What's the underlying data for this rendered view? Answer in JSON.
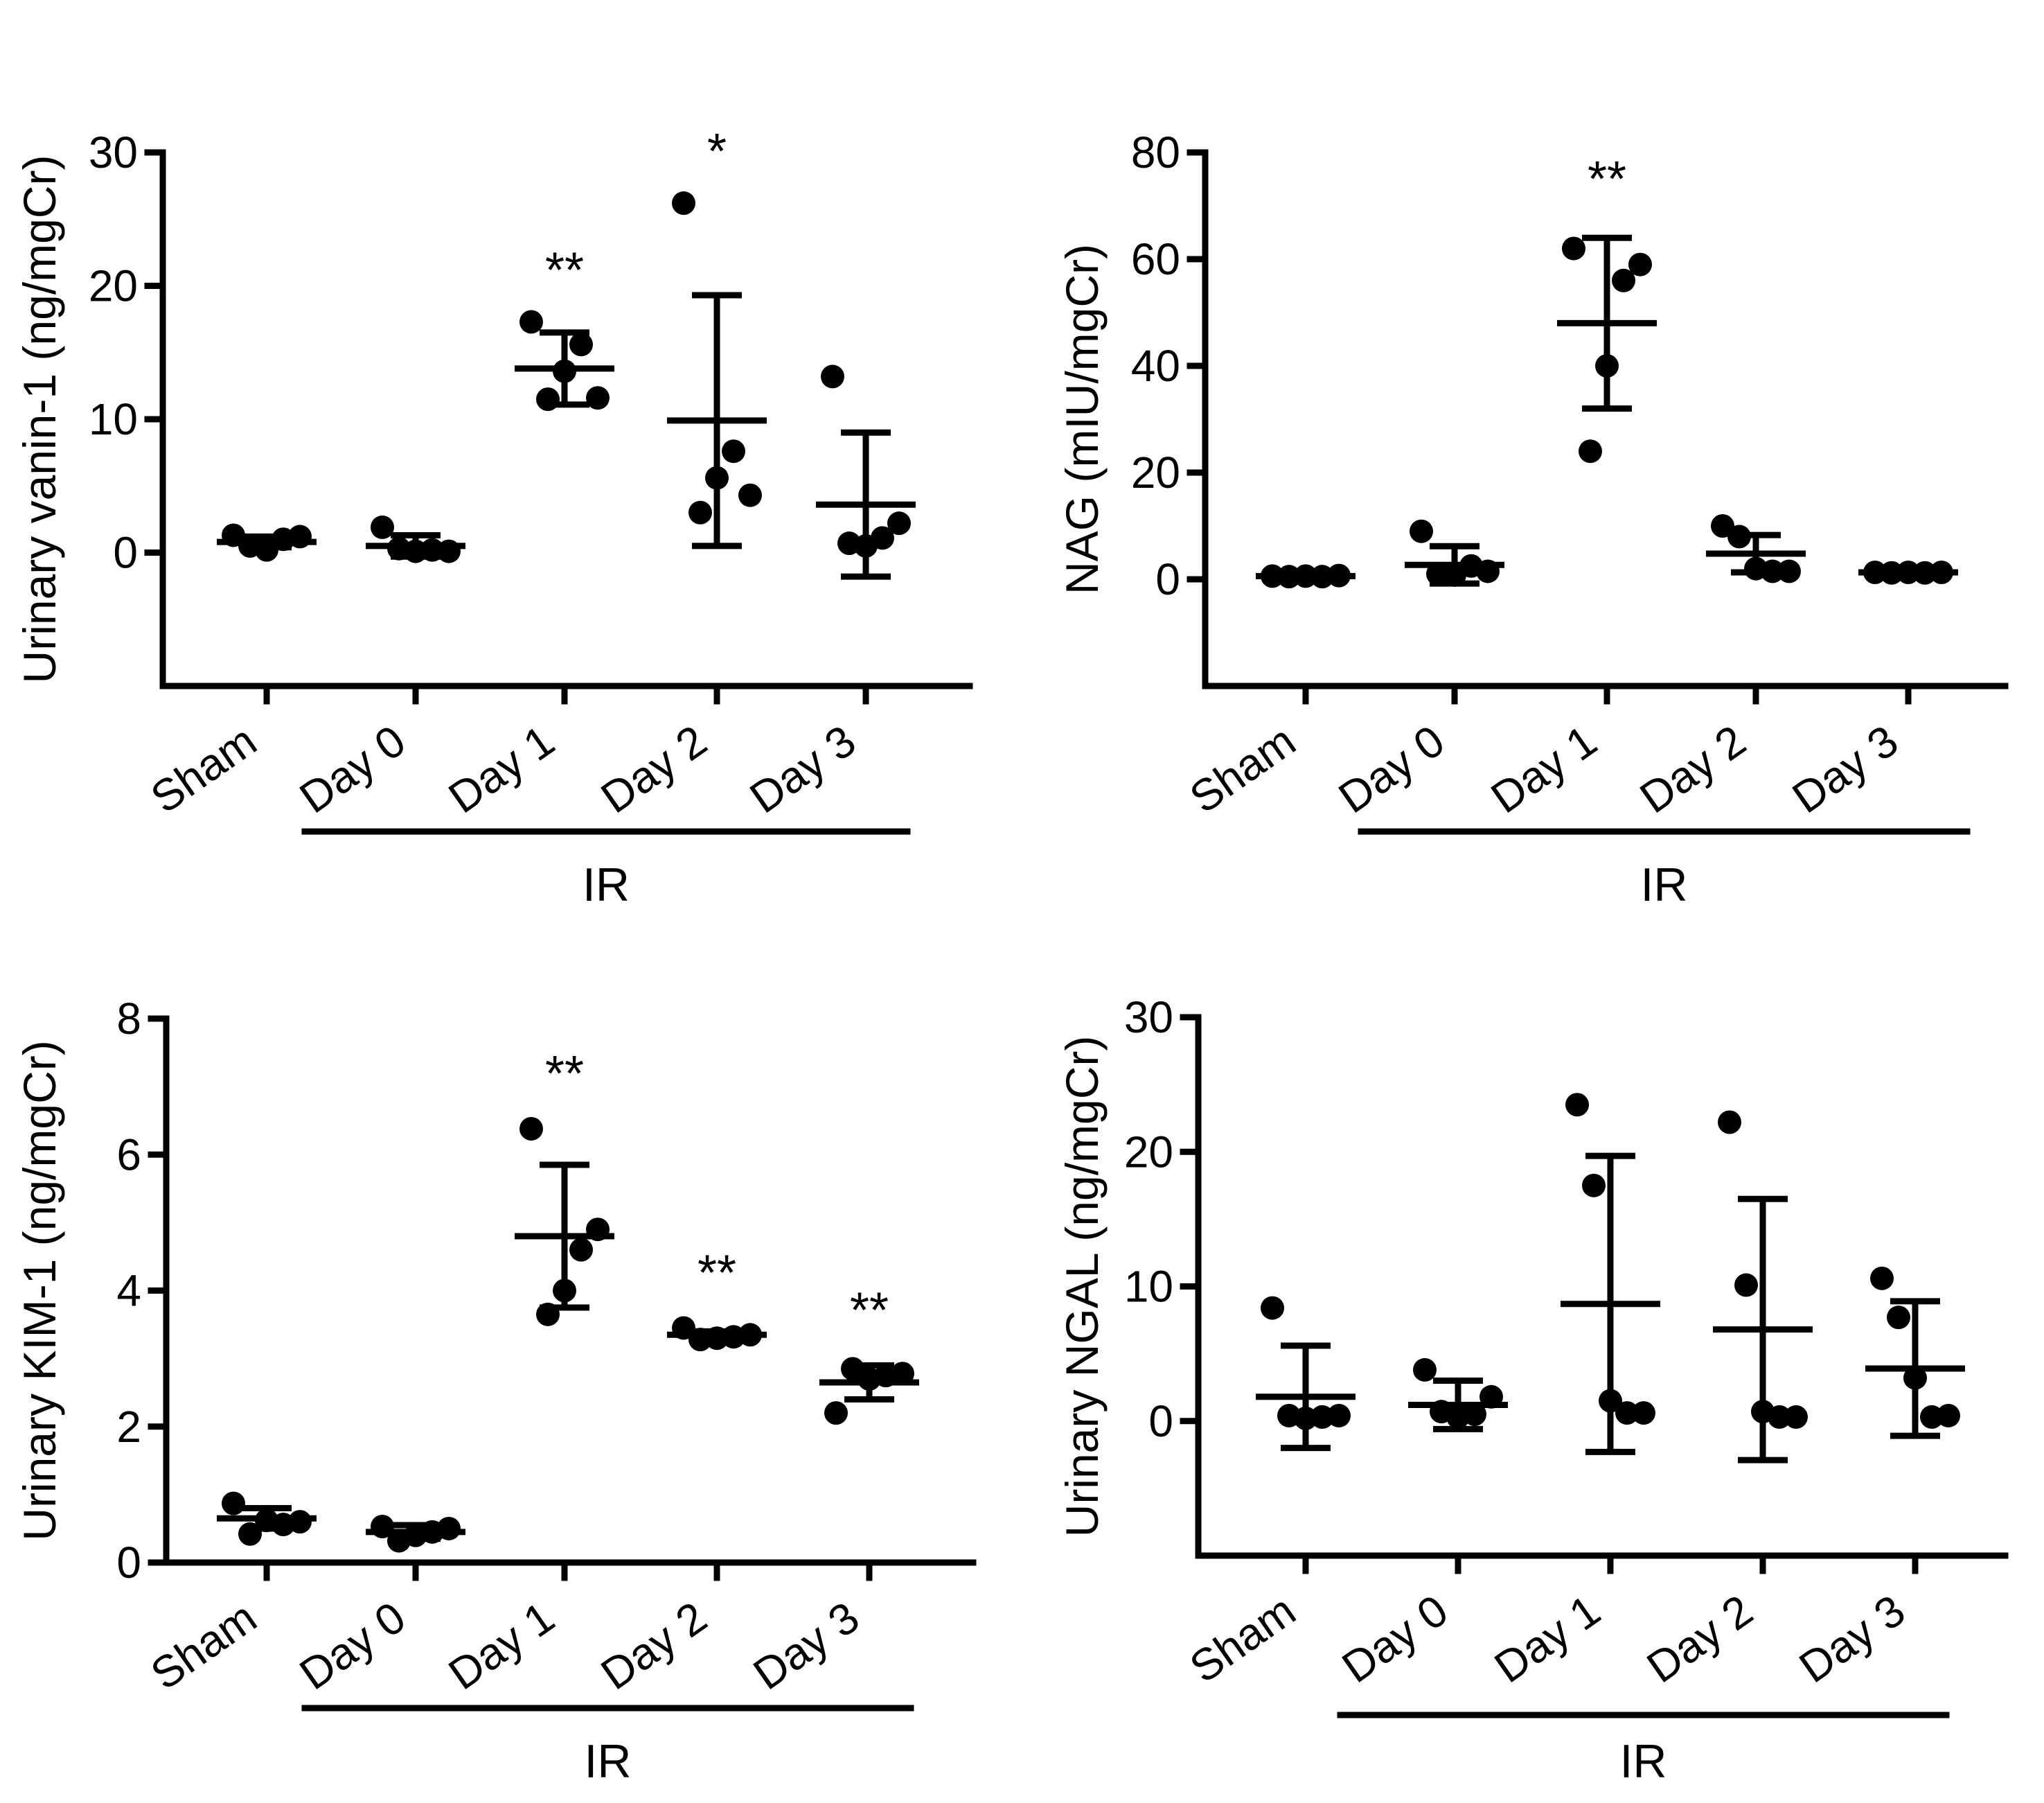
{
  "figure": {
    "background": "#ffffff",
    "ink": "#000000"
  },
  "chart_data": [
    {
      "type": "scatter",
      "panel": "top-left",
      "ylabel": "Urinary vanin-1 (ng/mgCr)",
      "ylim": [
        -10,
        30
      ],
      "yticks": [
        0,
        10,
        20,
        30
      ],
      "ytick_labels": [
        "0",
        "10",
        "20",
        "30"
      ],
      "categories": [
        "Sham",
        "Day 0",
        "Day 1",
        "Day 2",
        "Day 3"
      ],
      "group_label": "IR",
      "group_span": [
        "Day 0",
        "Day 3"
      ],
      "points": [
        [
          1.3,
          0.5,
          0.2,
          1.0,
          1.2
        ],
        [
          1.9,
          0.3,
          0.1,
          0.2,
          0.1
        ],
        [
          17.3,
          11.5,
          13.6,
          15.6,
          11.6
        ],
        [
          26.2,
          3.0,
          5.6,
          7.6,
          4.3
        ],
        [
          13.2,
          0.7,
          0.5,
          1.1,
          2.2
        ]
      ],
      "mean": [
        0.8,
        0.5,
        13.8,
        9.9,
        3.6
      ],
      "sd": [
        0.4,
        0.8,
        2.7,
        9.4,
        5.4
      ],
      "significance": [
        "",
        "",
        "**",
        "*",
        ""
      ]
    },
    {
      "type": "scatter",
      "panel": "top-right",
      "ylabel": "NAG (mIU/mgCr)",
      "ylim": [
        -20,
        80
      ],
      "yticks": [
        0,
        20,
        40,
        60,
        80
      ],
      "ytick_labels": [
        "0",
        "20",
        "40",
        "60",
        "80"
      ],
      "categories": [
        "Sham",
        "Day 0",
        "Day 1",
        "Day 2",
        "Day 3"
      ],
      "group_label": "IR",
      "group_span": [
        "Day 0",
        "Day 3"
      ],
      "points": [
        [
          0.6,
          0.5,
          0.6,
          0.5,
          0.7
        ],
        [
          9.0,
          1.0,
          0.8,
          2.5,
          1.5
        ],
        [
          62,
          24,
          40,
          56,
          59
        ],
        [
          10,
          8,
          2,
          1.5,
          1.5
        ],
        [
          1.3,
          1.2,
          1.3,
          1.2,
          1.3
        ]
      ],
      "mean": [
        0.6,
        2.7,
        48,
        4.8,
        1.3
      ],
      "sd": [
        0.1,
        3.5,
        16,
        3.5,
        0.1
      ],
      "significance": [
        "",
        "",
        "**",
        "",
        ""
      ]
    },
    {
      "type": "scatter",
      "panel": "bottom-left",
      "ylabel": "Urinary KIM-1 (ng/mgCr)",
      "ylim": [
        0,
        8
      ],
      "yticks": [
        0,
        2,
        4,
        6,
        8
      ],
      "ytick_labels": [
        "0",
        "2",
        "4",
        "6",
        "8"
      ],
      "categories": [
        "Sham",
        "Day 0",
        "Day 1",
        "Day 2",
        "Day 3"
      ],
      "group_label": "IR",
      "group_span": [
        "Day 0",
        "Day 3"
      ],
      "points": [
        [
          0.87,
          0.42,
          0.62,
          0.56,
          0.6
        ],
        [
          0.53,
          0.32,
          0.4,
          0.45,
          0.5
        ],
        [
          6.38,
          3.65,
          4.0,
          4.6,
          4.9
        ],
        [
          3.45,
          3.28,
          3.3,
          3.32,
          3.35
        ],
        [
          2.2,
          2.85,
          2.7,
          2.75,
          2.78
        ]
      ],
      "mean": [
        0.65,
        0.45,
        4.8,
        3.35,
        2.65
      ],
      "sd": [
        0.15,
        0.1,
        1.05,
        0.05,
        0.25
      ],
      "significance": [
        "",
        "",
        "**",
        "**",
        "**"
      ]
    },
    {
      "type": "scatter",
      "panel": "bottom-right",
      "ylabel": "Urinary NGAL (ng/mgCr)",
      "ylim": [
        -10,
        30
      ],
      "yticks": [
        0,
        10,
        20,
        30
      ],
      "ytick_labels": [
        "0",
        "10",
        "20",
        "30"
      ],
      "categories": [
        "Sham",
        "Day 0",
        "Day 1",
        "Day 2",
        "Day 3"
      ],
      "group_label": "IR",
      "group_span": [
        "Day 0",
        "Day 3"
      ],
      "points": [
        [
          8.4,
          0.4,
          0.2,
          0.3,
          0.4
        ],
        [
          3.8,
          0.7,
          0.3,
          0.5,
          1.8
        ],
        [
          23.5,
          17.5,
          1.5,
          0.6,
          0.6
        ],
        [
          22.2,
          10.1,
          0.7,
          0.3,
          0.3
        ],
        [
          10.6,
          7.7,
          3.2,
          0.3,
          0.4
        ]
      ],
      "mean": [
        1.8,
        1.2,
        8.7,
        6.8,
        3.9
      ],
      "sd": [
        3.8,
        1.8,
        11.0,
        9.7,
        5.0
      ],
      "significance": [
        "",
        "",
        "",
        "",
        ""
      ]
    }
  ]
}
